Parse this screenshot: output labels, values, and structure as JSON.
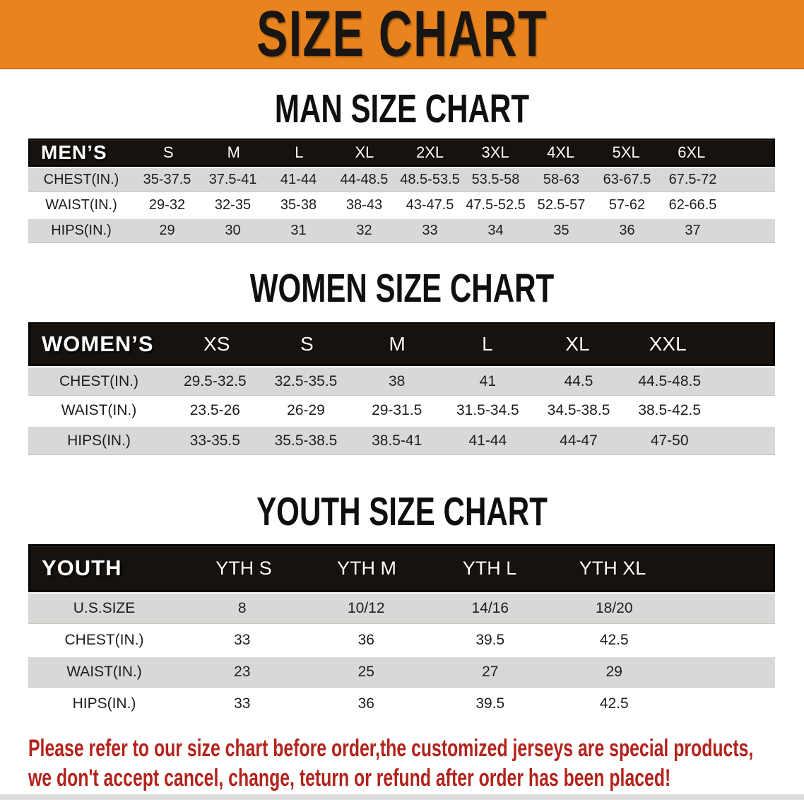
{
  "banner": {
    "title": "SIZE CHART",
    "bg_color": "#e8831d",
    "text_color": "#181512"
  },
  "sections": [
    {
      "heading": "MAN SIZE CHART",
      "table": {
        "label": "MEN’S",
        "columns": [
          "S",
          "M",
          "L",
          "XL",
          "2XL",
          "3XL",
          "4XL",
          "5XL",
          "6XL"
        ],
        "rows": [
          {
            "label": "CHEST(IN.)",
            "values": [
              "35-37.5",
              "37.5-41",
              "41-44",
              "44-48.5",
              "48.5-53.5",
              "53.5-58",
              "58-63",
              "63-67.5",
              "67.5-72"
            ]
          },
          {
            "label": "WAIST(IN.)",
            "values": [
              "29-32",
              "32-35",
              "35-38",
              "38-43",
              "43-47.5",
              "47.5-52.5",
              "52.5-57",
              "57-62",
              "62-66.5"
            ]
          },
          {
            "label": "HIPS(IN.)",
            "values": [
              "29",
              "30",
              "31",
              "32",
              "33",
              "34",
              "35",
              "36",
              "37"
            ]
          }
        ]
      }
    },
    {
      "heading": "WOMEN SIZE CHART",
      "table": {
        "label": "WOMEN’S",
        "columns": [
          "XS",
          "S",
          "M",
          "L",
          "XL",
          "XXL"
        ],
        "rows": [
          {
            "label": "CHEST(IN.)",
            "values": [
              "29.5-32.5",
              "32.5-35.5",
              "38",
              "41",
              "44.5",
              "44.5-48.5"
            ]
          },
          {
            "label": "WAIST(IN.)",
            "values": [
              "23.5-26",
              "26-29",
              "29-31.5",
              "31.5-34.5",
              "34.5-38.5",
              "38.5-42.5"
            ]
          },
          {
            "label": "HIPS(IN.)",
            "values": [
              "33-35.5",
              "35.5-38.5",
              "38.5-41",
              "41-44",
              "44-47",
              "47-50"
            ]
          }
        ]
      }
    },
    {
      "heading": "YOUTH SIZE CHART",
      "table": {
        "label": "YOUTH",
        "columns": [
          "YTH S",
          "YTH M",
          "YTH L",
          "YTH XL"
        ],
        "rows": [
          {
            "label": "U.S.SIZE",
            "values": [
              "8",
              "10/12",
              "14/16",
              "18/20"
            ]
          },
          {
            "label": "CHEST(IN.)",
            "values": [
              "33",
              "36",
              "39.5",
              "42.5"
            ]
          },
          {
            "label": "WAIST(IN.)",
            "values": [
              "23",
              "25",
              "27",
              "29"
            ]
          },
          {
            "label": "HIPS(IN.)",
            "values": [
              "33",
              "36",
              "39.5",
              "42.5"
            ]
          }
        ]
      }
    }
  ],
  "disclaimer": {
    "line1": "Please refer to our size chart before order,the customized jerseys are special products,",
    "line2": "we don't accept cancel, change, teturn or refund after order has been placed!",
    "text_color": "#b3231c"
  },
  "colors": {
    "banner_orange": "#e8831d",
    "header_band_black": "#17120e",
    "row_stripe_gray": "#d9d8d6",
    "disclaimer_red": "#b3231c"
  }
}
